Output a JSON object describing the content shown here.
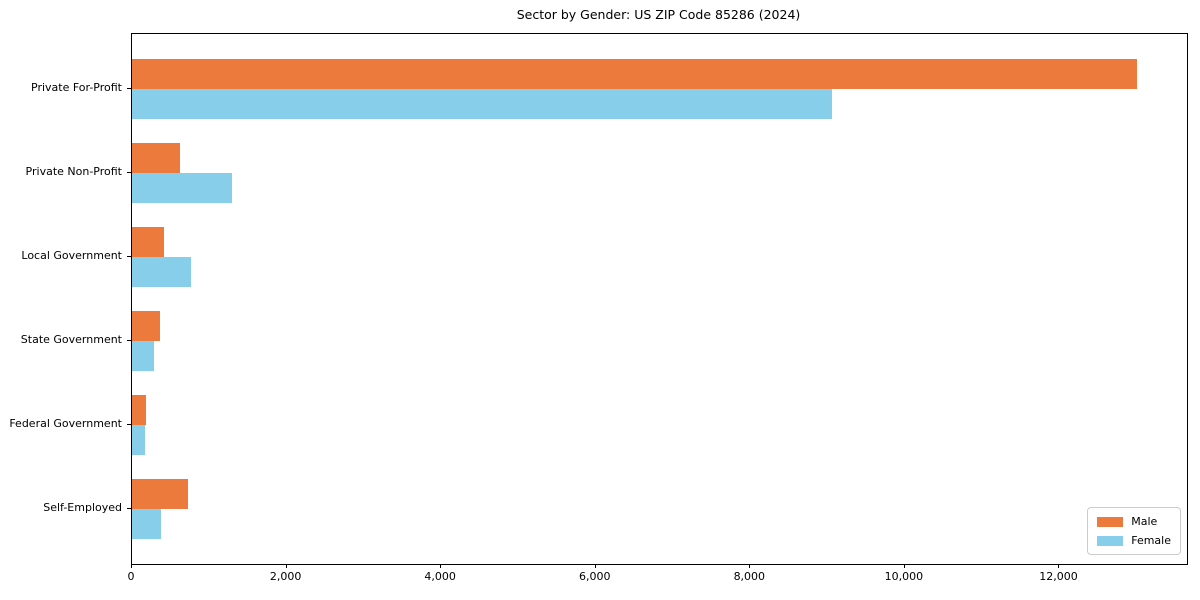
{
  "title": "Sector by Gender: US ZIP Code 85286 (2024)",
  "chart_data": {
    "type": "bar",
    "orientation": "horizontal",
    "title": "Sector by Gender: US ZIP Code 85286 (2024)",
    "categories": [
      "Private For-Profit",
      "Private Non-Profit",
      "Local Government",
      "State Government",
      "Federal Government",
      "Self-Employed"
    ],
    "series": [
      {
        "name": "Male",
        "color": "#ec7a3c",
        "values": [
          13000,
          620,
          420,
          360,
          185,
          725
        ]
      },
      {
        "name": "Female",
        "color": "#87ceeb",
        "values": [
          9060,
          1300,
          760,
          290,
          170,
          370
        ]
      }
    ],
    "xlabel": "",
    "ylabel": "",
    "xlim": [
      0,
      13650
    ],
    "xticks": [
      0,
      2000,
      4000,
      6000,
      8000,
      10000,
      12000
    ],
    "xtick_labels": [
      "0",
      "2,000",
      "4,000",
      "6,000",
      "8,000",
      "10,000",
      "12,000"
    ],
    "grid": false,
    "legend_position": "lower right"
  },
  "legend": {
    "items": [
      {
        "label": "Male",
        "color": "#ec7a3c"
      },
      {
        "label": "Female",
        "color": "#87ceeb"
      }
    ]
  }
}
